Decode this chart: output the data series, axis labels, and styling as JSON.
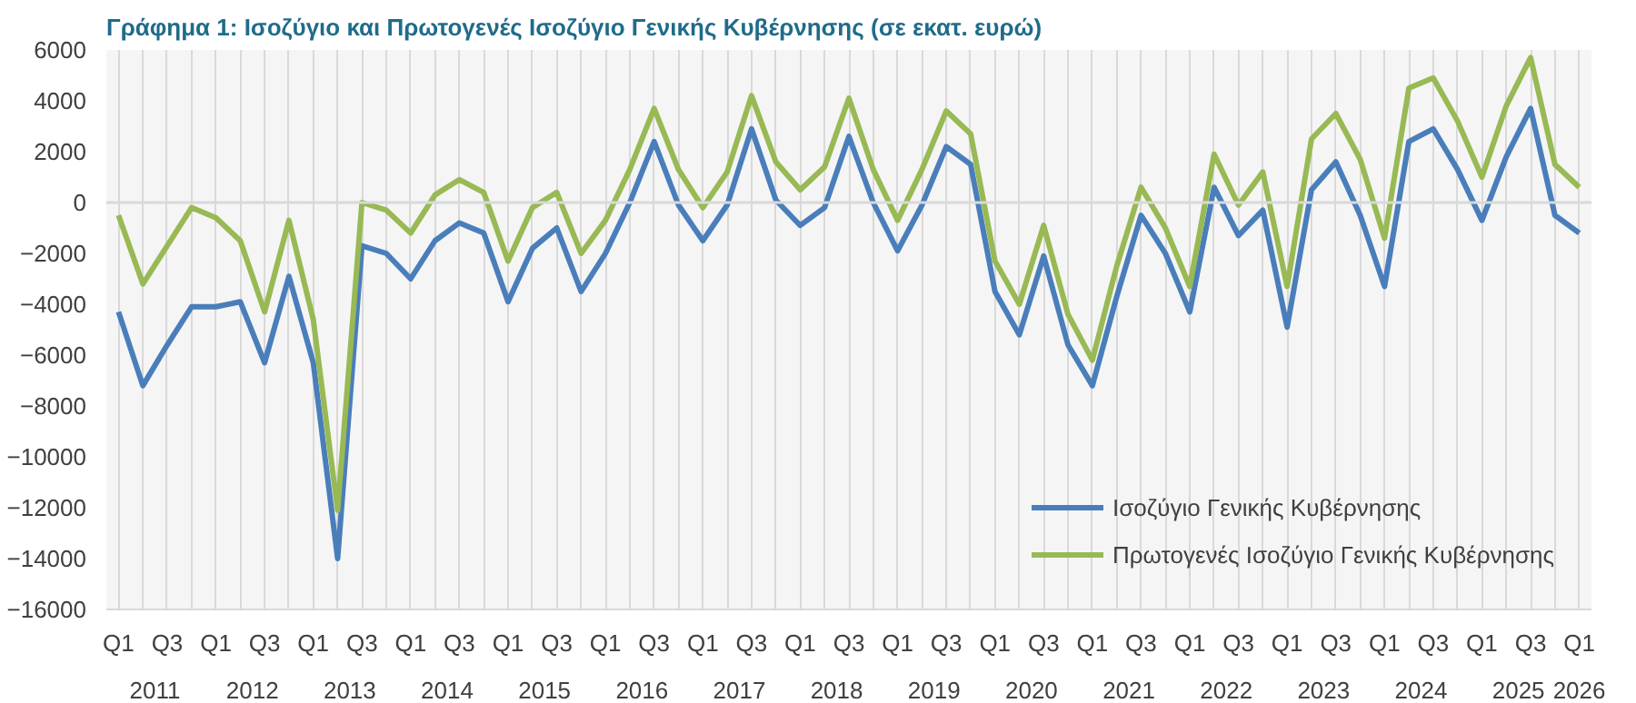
{
  "chart_data": {
    "type": "line",
    "title": "Γράφημα 1: Ισοζύγιο και Πρωτογενές Ισοζύγιο Γενικής Κυβέρνησης (σε εκατ. ευρώ)",
    "categories": [
      "Q1",
      null,
      "Q3",
      null,
      "Q1",
      null,
      "Q3",
      null,
      "Q1",
      null,
      "Q3",
      null,
      "Q1",
      null,
      "Q3",
      null,
      "Q1",
      null,
      "Q3",
      null,
      "Q1",
      null,
      "Q3",
      null,
      "Q1",
      null,
      "Q3",
      null,
      "Q1",
      null,
      "Q3",
      null,
      "Q1",
      null,
      "Q3",
      null,
      "Q1",
      null,
      "Q3",
      null,
      "Q1",
      null,
      "Q3",
      null,
      "Q1",
      null,
      "Q3",
      null,
      "Q1",
      null,
      "Q3",
      null,
      "Q1",
      null,
      "Q3",
      null,
      "Q1",
      null,
      "Q3",
      null,
      "Q1"
    ],
    "series": [
      {
        "name": "Ισοζύγιο Γενικής Κυβέρνησης",
        "color": "#4a7ebb",
        "values": [
          -4300,
          -7200,
          -5600,
          -4100,
          -4100,
          -3900,
          -6300,
          -2900,
          -6300,
          -14000,
          -1700,
          -2000,
          -3000,
          -1500,
          -800,
          -1200,
          -3900,
          -1800,
          -1000,
          -3500,
          -2000,
          0,
          2400,
          -100,
          -1500,
          -100,
          2900,
          100,
          -900,
          -200,
          2600,
          0,
          -1900,
          -100,
          2200,
          1500,
          -3500,
          -5200,
          -2100,
          -5600,
          -7200,
          -3700,
          -500,
          -2000,
          -4300,
          600,
          -1300,
          -300,
          -4900,
          500,
          1600,
          -500,
          -3300,
          2400,
          2900,
          1300,
          -700,
          1800,
          3700,
          -500,
          -1200
        ]
      },
      {
        "name": "Πρωτογενές Ισοζύγιο Γενικής Κυβέρνησης",
        "color": "#98b954",
        "values": [
          -500,
          -3200,
          -1700,
          -200,
          -600,
          -1500,
          -4300,
          -700,
          -4600,
          -12100,
          0,
          -300,
          -1200,
          300,
          900,
          400,
          -2300,
          -200,
          400,
          -2000,
          -700,
          1300,
          3700,
          1300,
          -200,
          1200,
          4200,
          1600,
          500,
          1400,
          4100,
          1300,
          -700,
          1300,
          3600,
          2700,
          -2300,
          -4000,
          -900,
          -4400,
          -6200,
          -2500,
          600,
          -1000,
          -3300,
          1900,
          -100,
          1200,
          -3300,
          2500,
          3500,
          1700,
          -1400,
          4500,
          4900,
          3200,
          1000,
          3800,
          5700,
          1500,
          600
        ]
      }
    ],
    "annotations": [
      "2011",
      "2012",
      "2013",
      "2014",
      "2015",
      "2016",
      "2017",
      "2018",
      "2019",
      "2020",
      "2021",
      "2022",
      "2023",
      "2024",
      "2025",
      "2026"
    ],
    "ylim": [
      -16000,
      6000
    ],
    "yticks": [
      -16000,
      -14000,
      -12000,
      -10000,
      -8000,
      -6000,
      -4000,
      -2000,
      0,
      2000,
      4000,
      6000
    ],
    "ref_lines": [
      {
        "axis": "y",
        "value": 0,
        "color": "#d9d9d9"
      }
    ],
    "grid": "x",
    "legend": "bottom right",
    "line_style": "solid",
    "marker": "none"
  }
}
